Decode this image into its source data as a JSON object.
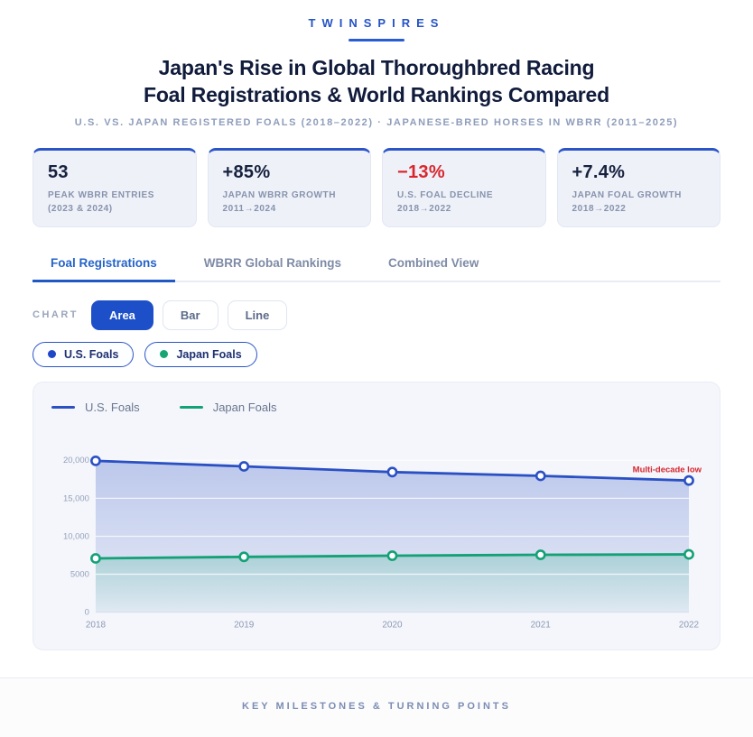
{
  "brand": "TWINSPIRES",
  "title_line1": "Japan's Rise in Global Thoroughbred Racing",
  "title_line2": "Foal Registrations & World Rankings Compared",
  "subtitle": "U.S. VS. JAPAN REGISTERED FOALS (2018–2022) · JAPANESE-BRED HORSES IN WBRR (2011–2025)",
  "stats": [
    {
      "value": "53",
      "label": "PEAK WBRR ENTRIES (2023 & 2024)",
      "color": "#16213f"
    },
    {
      "value": "+85%",
      "label": "JAPAN WBRR GROWTH 2011→2024",
      "color": "#16213f"
    },
    {
      "value": "−13%",
      "label": "U.S. FOAL DECLINE 2018→2022",
      "color": "#d9262e"
    },
    {
      "value": "+7.4%",
      "label": "JAPAN FOAL GROWTH 2018→2022",
      "color": "#16213f"
    }
  ],
  "tabs": [
    {
      "label": "Foal Registrations",
      "active": true
    },
    {
      "label": "WBRR Global Rankings",
      "active": false
    },
    {
      "label": "Combined View",
      "active": false
    }
  ],
  "controls": {
    "label": "CHART",
    "buttons": [
      {
        "label": "Area",
        "active": true
      },
      {
        "label": "Bar",
        "active": false
      },
      {
        "label": "Line",
        "active": false
      }
    ]
  },
  "series_toggles": [
    {
      "label": "U.S. Foals",
      "dot": "#1d46c8"
    },
    {
      "label": "Japan Foals",
      "dot": "#17a673"
    }
  ],
  "footer": "KEY MILESTONES & TURNING POINTS",
  "chart_data": {
    "type": "area",
    "x": [
      2018,
      2019,
      2020,
      2021,
      2022
    ],
    "series": [
      {
        "name": "U.S. Foals",
        "color": "#2b50c3",
        "values": [
          19925,
          19200,
          18450,
          17950,
          17335
        ]
      },
      {
        "name": "Japan Foals",
        "color": "#13a176",
        "values": [
          7089,
          7290,
          7440,
          7560,
          7614
        ]
      }
    ],
    "ylim": [
      0,
      23000
    ],
    "yticks": [
      {
        "v": 0,
        "label": "0"
      },
      {
        "v": 5000,
        "label": "5000"
      },
      {
        "v": 10000,
        "label": "10,000"
      },
      {
        "v": 15000,
        "label": "15,000"
      },
      {
        "v": 20000,
        "label": "20,000"
      }
    ],
    "annotation": {
      "text": "Multi-decade low",
      "color": "#d9262e",
      "series_index": 0,
      "point_index": 4
    },
    "legend_position": "top-left",
    "grid": true
  }
}
